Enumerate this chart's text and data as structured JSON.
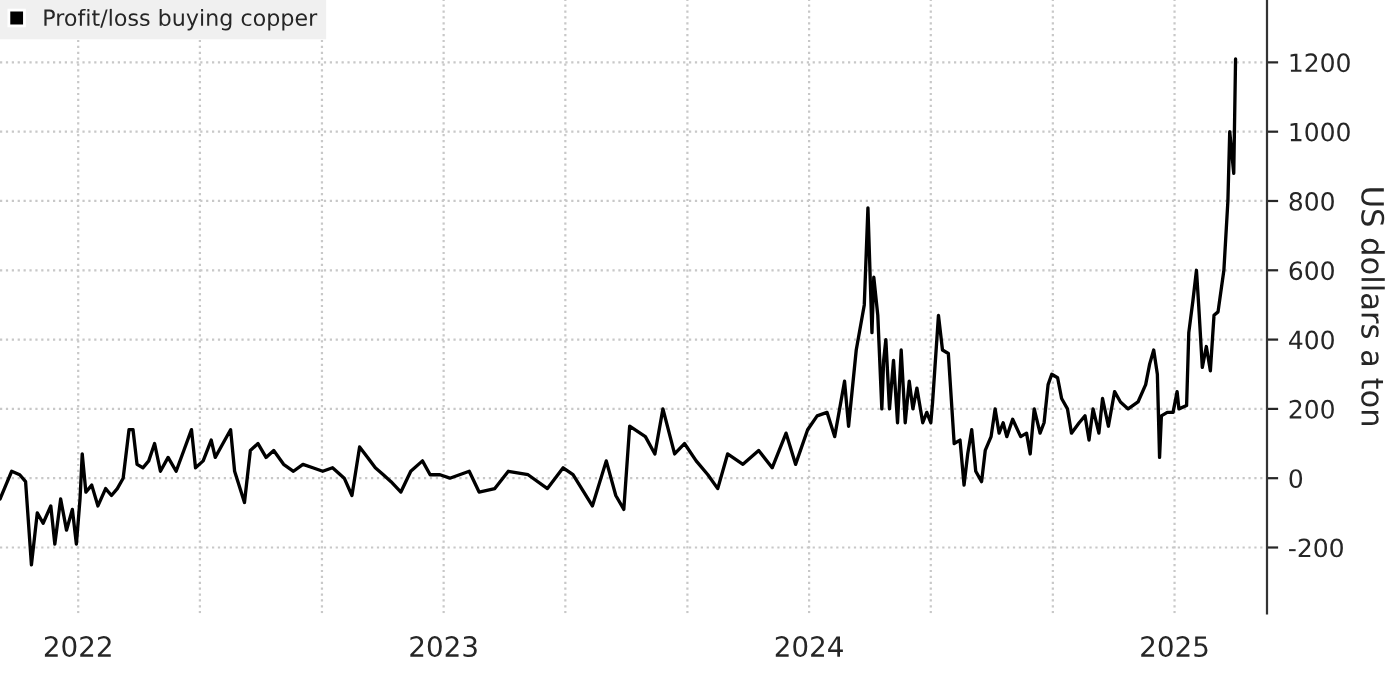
{
  "chart_data": {
    "type": "line",
    "ylabel": "US dollars a ton",
    "x": [
      2021.786,
      2021.802,
      2021.818,
      2021.84,
      2021.856,
      2021.872,
      2021.888,
      2021.904,
      2021.925,
      2021.936,
      2021.952,
      2021.968,
      2021.984,
      2021.995,
      2022.005,
      2022.011,
      2022.021,
      2022.037,
      2022.054,
      2022.075,
      2022.091,
      2022.107,
      2022.123,
      2022.139,
      2022.15,
      2022.161,
      2022.177,
      2022.193,
      2022.209,
      2022.225,
      2022.246,
      2022.268,
      2022.289,
      2022.31,
      2022.321,
      2022.342,
      2022.364,
      2022.375,
      2022.396,
      2022.417,
      2022.428,
      2022.455,
      2022.471,
      2022.492,
      2022.514,
      2022.535,
      2022.562,
      2022.589,
      2022.615,
      2022.642,
      2022.669,
      2022.696,
      2022.728,
      2022.749,
      2022.77,
      2022.792,
      2022.813,
      2022.835,
      2022.856,
      2022.883,
      2022.91,
      2022.942,
      2022.963,
      2022.99,
      2023.017,
      2023.07,
      2023.097,
      2023.14,
      2023.177,
      2023.231,
      2023.284,
      2023.327,
      2023.354,
      2023.407,
      2023.445,
      2023.471,
      2023.493,
      2023.509,
      2023.552,
      2023.578,
      2023.6,
      2023.632,
      2023.659,
      2023.691,
      2023.723,
      2023.75,
      2023.777,
      2023.819,
      2023.862,
      2023.899,
      2023.937,
      2023.963,
      2023.996,
      2024.022,
      2024.049,
      2024.07,
      2024.097,
      2024.108,
      2024.129,
      2024.151,
      2024.161,
      2024.172,
      2024.177,
      2024.188,
      2024.199,
      2024.204,
      2024.21,
      2024.22,
      2024.231,
      2024.242,
      2024.252,
      2024.263,
      2024.274,
      2024.284,
      2024.295,
      2024.311,
      2024.322,
      2024.333,
      2024.338,
      2024.354,
      2024.365,
      2024.381,
      2024.397,
      2024.413,
      2024.424,
      2024.434,
      2024.445,
      2024.456,
      2024.472,
      2024.482,
      2024.498,
      2024.509,
      2024.52,
      2024.531,
      2024.541,
      2024.557,
      2024.579,
      2024.595,
      2024.605,
      2024.616,
      2024.632,
      2024.643,
      2024.654,
      2024.664,
      2024.68,
      2024.691,
      2024.707,
      2024.718,
      2024.739,
      2024.755,
      2024.766,
      2024.777,
      2024.793,
      2024.803,
      2024.819,
      2024.836,
      2024.852,
      2024.873,
      2024.9,
      2024.921,
      2024.932,
      2024.943,
      2024.953,
      2024.959,
      2024.964,
      2024.98,
      2024.996,
      2025.007,
      2025.012,
      2025.033,
      2025.039,
      2025.05,
      2025.06,
      2025.066,
      2025.076,
      2025.087,
      2025.098,
      2025.108,
      2025.119,
      2025.135,
      2025.146,
      2025.151,
      2025.162,
      2025.167
    ],
    "series": [
      {
        "name": "Profit/loss buying copper",
        "color": "#000000",
        "values": [
          -60,
          -20,
          20,
          10,
          -10,
          -250,
          -100,
          -130,
          -80,
          -190,
          -60,
          -150,
          -90,
          -190,
          -60,
          70,
          -40,
          -20,
          -80,
          -30,
          -50,
          -30,
          0,
          140,
          140,
          40,
          30,
          50,
          100,
          20,
          60,
          20,
          80,
          140,
          30,
          50,
          110,
          60,
          100,
          140,
          20,
          -70,
          80,
          100,
          60,
          80,
          40,
          20,
          40,
          30,
          20,
          30,
          0,
          -50,
          90,
          60,
          30,
          10,
          -10,
          -40,
          20,
          50,
          10,
          10,
          0,
          20,
          -40,
          -30,
          20,
          10,
          -30,
          30,
          10,
          -80,
          50,
          -50,
          -90,
          150,
          120,
          70,
          200,
          70,
          100,
          50,
          10,
          -30,
          70,
          40,
          80,
          30,
          130,
          40,
          140,
          180,
          190,
          120,
          280,
          150,
          370,
          500,
          780,
          420,
          580,
          470,
          200,
          340,
          400,
          200,
          340,
          160,
          370,
          160,
          280,
          200,
          260,
          160,
          190,
          160,
          220,
          470,
          370,
          360,
          100,
          110,
          -20,
          70,
          140,
          20,
          -10,
          80,
          120,
          200,
          130,
          160,
          120,
          170,
          120,
          130,
          70,
          200,
          130,
          160,
          270,
          300,
          290,
          230,
          200,
          130,
          160,
          180,
          110,
          200,
          130,
          230,
          150,
          250,
          220,
          200,
          220,
          270,
          330,
          370,
          300,
          60,
          180,
          190,
          190,
          250,
          200,
          210,
          420,
          510,
          600,
          500,
          320,
          380,
          310,
          470,
          480,
          600,
          800,
          1000,
          880,
          1210
        ]
      }
    ],
    "xlim": [
      2021.786,
      2025.253
    ],
    "xticks": [
      {
        "value": 2022,
        "label": "2022"
      },
      {
        "value": 2022.333,
        "label": null
      },
      {
        "value": 2022.667,
        "label": null
      },
      {
        "value": 2023,
        "label": "2023"
      },
      {
        "value": 2023.333,
        "label": null
      },
      {
        "value": 2023.667,
        "label": null
      },
      {
        "value": 2024,
        "label": "2024"
      },
      {
        "value": 2024.333,
        "label": null
      },
      {
        "value": 2024.667,
        "label": null
      },
      {
        "value": 2025,
        "label": "2025"
      }
    ],
    "ylim": [
      -390,
      1380
    ],
    "yticks": [
      -200,
      0,
      200,
      400,
      600,
      800,
      1000,
      1200
    ],
    "grid": true,
    "legend": "top left",
    "line_style": "solid",
    "marker": "none"
  }
}
